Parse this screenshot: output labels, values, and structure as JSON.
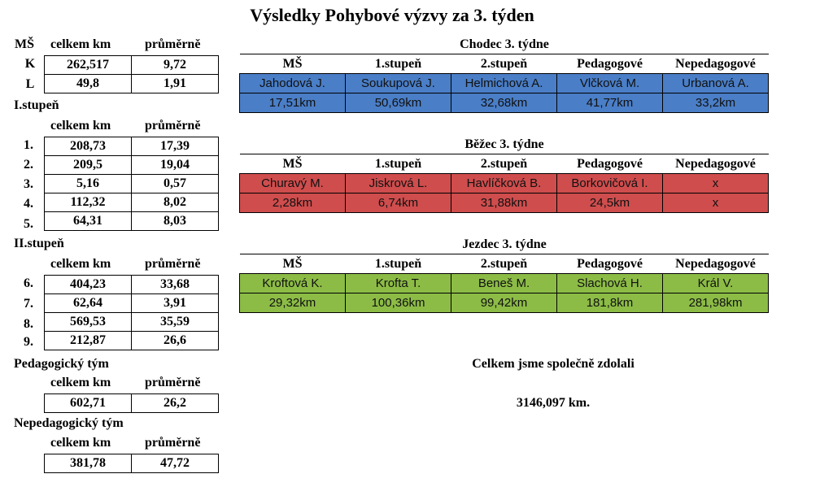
{
  "title": "Výsledky Pohybové výzvy za 3. týden",
  "left": {
    "ms": {
      "label": "MŠ",
      "col1": "celkem km",
      "col2": "průměrně",
      "rows": [
        {
          "label": "K",
          "total": "262,517",
          "avg": "9,72"
        },
        {
          "label": "L",
          "total": "49,8",
          "avg": "1,91"
        }
      ]
    },
    "stupen1": {
      "label": "I.stupeň",
      "col1": "celkem km",
      "col2": "průměrně",
      "rows": [
        {
          "label": "1.",
          "total": "208,73",
          "avg": "17,39"
        },
        {
          "label": "2.",
          "total": "209,5",
          "avg": "19,04"
        },
        {
          "label": "3.",
          "total": "5,16",
          "avg": "0,57"
        },
        {
          "label": "4.",
          "total": "112,32",
          "avg": "8,02"
        },
        {
          "label": "5.",
          "total": "64,31",
          "avg": "8,03"
        }
      ]
    },
    "stupen2": {
      "label": "II.stupeň",
      "col1": "celkem km",
      "col2": "průměrně",
      "rows": [
        {
          "label": "6.",
          "total": "404,23",
          "avg": "33,68"
        },
        {
          "label": "7.",
          "total": "62,64",
          "avg": "3,91"
        },
        {
          "label": "8.",
          "total": "569,53",
          "avg": "35,59"
        },
        {
          "label": "9.",
          "total": "212,87",
          "avg": "26,6"
        }
      ]
    },
    "ped": {
      "label": "Pedagogický tým",
      "col1": "celkem km",
      "col2": "průměrně",
      "total": "602,71",
      "avg": "26,2"
    },
    "neped": {
      "label": "Nepedagogický tým",
      "col1": "celkem km",
      "col2": "průměrně",
      "total": "381,78",
      "avg": "47,72"
    }
  },
  "columns": [
    "MŠ",
    "1.stupeň",
    "2.stupeň",
    "Pedagogové",
    "Nepedagogové"
  ],
  "chodec": {
    "title": "Chodec 3. týdne",
    "color": "#4a7ec7",
    "names": [
      "Jahodová J.",
      "Soukupová J.",
      "Helmichová A.",
      "Vlčková M.",
      "Urbanová A."
    ],
    "km": [
      "17,51km",
      "50,69km",
      "32,68km",
      "41,77km",
      "33,2km"
    ]
  },
  "bezec": {
    "title": "Běžec 3. týdne",
    "color": "#cf4d4d",
    "names": [
      "Churavý M.",
      "Jiskrová L.",
      "Havlíčková B.",
      "Borkovičová I.",
      "x"
    ],
    "km": [
      "2,28km",
      "6,74km",
      "31,88km",
      "24,5km",
      "x"
    ]
  },
  "jezdec": {
    "title": "Jezdec 3. týdne",
    "color": "#8cbc46",
    "names": [
      "Kroftová K.",
      "Krofta T.",
      "Beneš M.",
      "Slachová H.",
      "Král V."
    ],
    "km": [
      "29,32km",
      "100,36km",
      "99,42km",
      "181,8km",
      "281,98km"
    ]
  },
  "summary": {
    "line1": "Celkem jsme společně zdolali",
    "line2": "3146,097 km."
  }
}
